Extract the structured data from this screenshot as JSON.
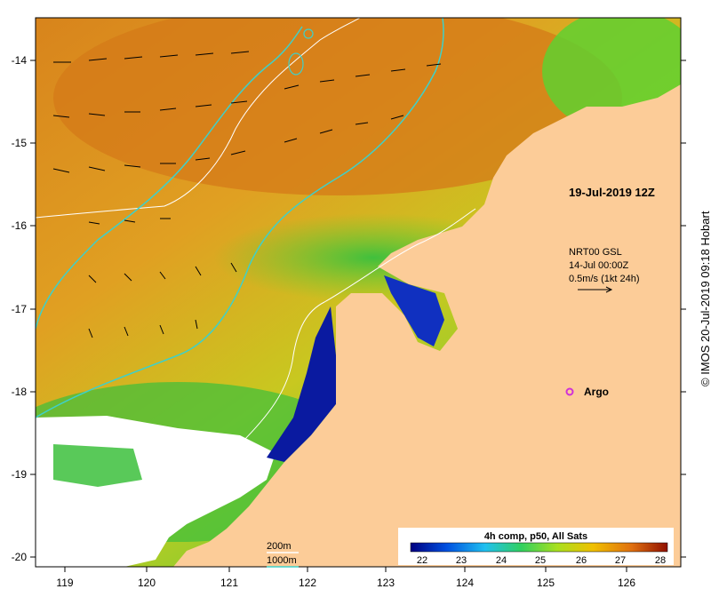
{
  "map": {
    "x_ticks": [
      "119",
      "120",
      "121",
      "122",
      "123",
      "124",
      "125",
      "126"
    ],
    "y_ticks": [
      "-14",
      "-15",
      "-16",
      "-17",
      "-18",
      "-19",
      "-20"
    ],
    "timestamp": "19-Jul-2019 12Z",
    "current_info": {
      "line1": "NRT00 GSL",
      "line2": "14-Jul 00:00Z",
      "line3": "0.5m/s (1kt 24h)"
    },
    "argo_label": "Argo",
    "contour_legend": {
      "contour_200": "200m",
      "contour_1000": "1000m"
    },
    "colorbar": {
      "title": "4h comp, p50, All Sats",
      "ticks": [
        "22",
        "23",
        "24",
        "25",
        "26",
        "27",
        "28"
      ]
    },
    "credit": "© IMOS 20-Jul-2019 09:18 Hobart"
  },
  "colors": {
    "land": "#fccc98",
    "cloud": "#ffffff",
    "contour_200": "#ffffff",
    "contour_1000": "#3fd0c8",
    "argo": "#d030d8",
    "colormap": [
      "#000080",
      "#0050e0",
      "#20c0f0",
      "#30d060",
      "#a8e020",
      "#f0c000",
      "#e07010",
      "#901000"
    ]
  }
}
